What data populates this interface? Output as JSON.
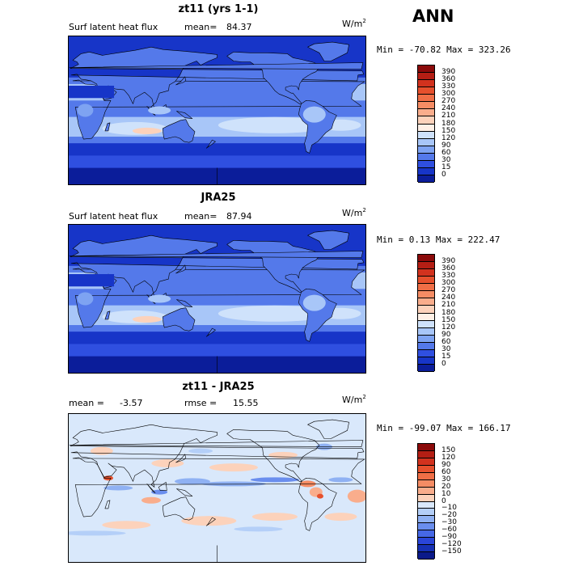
{
  "season": "ANN",
  "chart_data": [
    {
      "type": "heatmap",
      "title": "zt11 (yrs 1-1)",
      "variable": "Surf latent heat flux",
      "mean_label": "mean=",
      "mean": "84.37",
      "units_base": "W/m",
      "units_exp": "2",
      "min_label": "Min =",
      "min": "-70.82",
      "max_label": "Max =",
      "max": "323.26",
      "contour_levels": [
        "390",
        "360",
        "330",
        "300",
        "270",
        "240",
        "210",
        "180",
        "150",
        "120",
        "90",
        "60",
        "30",
        "15",
        "0"
      ],
      "colors": [
        "#8b0a0a",
        "#b41e14",
        "#d2321e",
        "#e6502d",
        "#f06e46",
        "#f58c64",
        "#f9ad8c",
        "#fcd2bb",
        "#fff0e6",
        "#cfe2fb",
        "#a8c6f8",
        "#7ea3f2",
        "#5479ea",
        "#2f4fe0",
        "#1735c8",
        "#0b1d9a"
      ],
      "scene": "latent"
    },
    {
      "type": "heatmap",
      "title": "JRA25",
      "variable": "Surf latent heat flux",
      "mean_label": "mean=",
      "mean": "87.94",
      "units_base": "W/m",
      "units_exp": "2",
      "min_label": "Min =",
      "min": "0.13",
      "max_label": "Max =",
      "max": "222.47",
      "contour_levels": [
        "390",
        "360",
        "330",
        "300",
        "270",
        "240",
        "210",
        "180",
        "150",
        "120",
        "90",
        "60",
        "30",
        "15",
        "0"
      ],
      "colors": [
        "#8b0a0a",
        "#b41e14",
        "#d2321e",
        "#e6502d",
        "#f06e46",
        "#f58c64",
        "#f9ad8c",
        "#fcd2bb",
        "#fff0e6",
        "#cfe2fb",
        "#a8c6f8",
        "#7ea3f2",
        "#5479ea",
        "#2f4fe0",
        "#1735c8",
        "#0b1d9a"
      ],
      "scene": "latent"
    },
    {
      "type": "heatmap",
      "title": "zt11 - JRA25",
      "mean_label": "mean =",
      "mean": "-3.57",
      "rmse_label": "rmse =",
      "rmse": "15.55",
      "units_base": "W/m",
      "units_exp": "2",
      "min_label": "Min =",
      "min": "-99.07",
      "max_label": "Max =",
      "max": "166.17",
      "contour_levels": [
        "150",
        "120",
        "90",
        "60",
        "30",
        "20",
        "10",
        "0",
        "−10",
        "−20",
        "−30",
        "−60",
        "−90",
        "−120",
        "−150"
      ],
      "colors": [
        "#8b0a0a",
        "#b41e14",
        "#d2321e",
        "#e6502d",
        "#f06e46",
        "#f58c64",
        "#f9ad8c",
        "#fcd2bb",
        "#d9e8fb",
        "#b4cff8",
        "#8fb1f3",
        "#6a8eee",
        "#4668e6",
        "#2a45d8",
        "#1630b4",
        "#0b1a8a"
      ],
      "scene": "diff"
    }
  ]
}
